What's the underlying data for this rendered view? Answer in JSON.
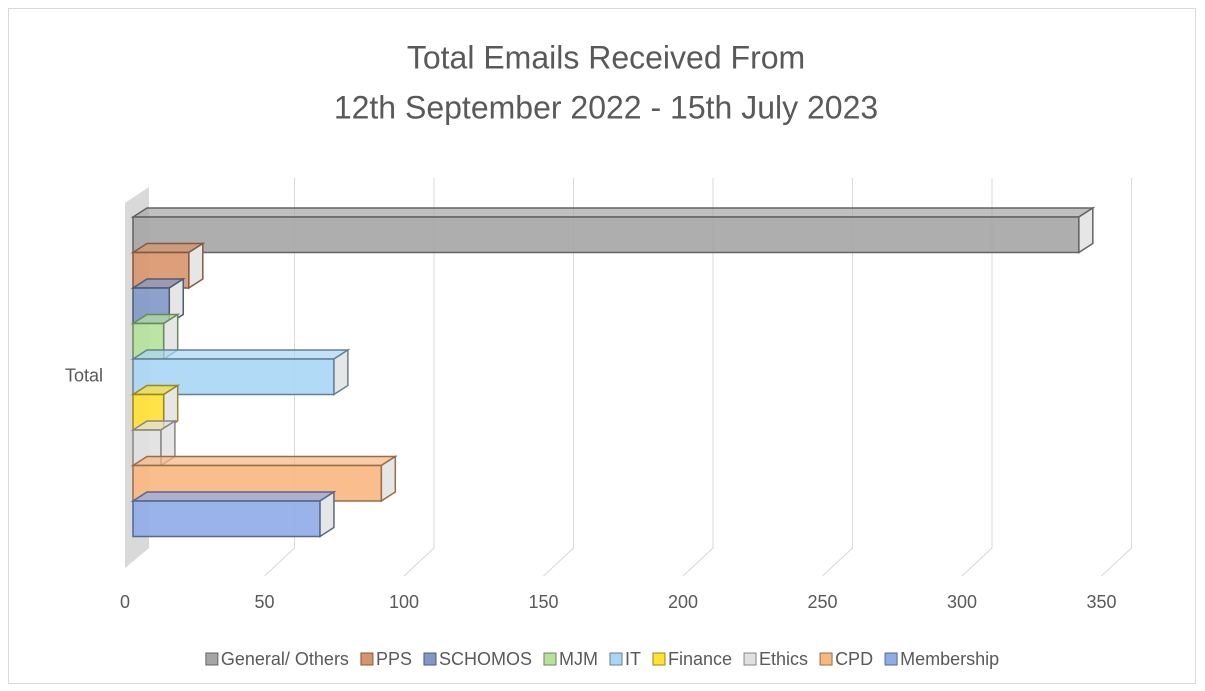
{
  "chart_data": {
    "type": "bar3d",
    "title": "Total Emails Received From",
    "subtitle": "12th September 2022 - 15th July 2023",
    "categories": [
      "Total"
    ],
    "series": [
      {
        "name": "General/ Others",
        "color": "#a5a5a5",
        "values": [
          339
        ]
      },
      {
        "name": "PPS",
        "color": "#d9946b",
        "values": [
          20
        ]
      },
      {
        "name": "SCHOMOS",
        "color": "#7f98c8",
        "values": [
          13
        ]
      },
      {
        "name": "MJM",
        "color": "#b4e19b",
        "values": [
          11
        ]
      },
      {
        "name": "IT",
        "color": "#a9d6f5",
        "values": [
          72
        ]
      },
      {
        "name": "Finance",
        "color": "#ffe033",
        "values": [
          11
        ]
      },
      {
        "name": "Ethics",
        "color": "#e0e0e0",
        "values": [
          10
        ]
      },
      {
        "name": "CPD",
        "color": "#f8b77f",
        "values": [
          89
        ]
      },
      {
        "name": "Membership",
        "color": "#8fabe8",
        "values": [
          67
        ]
      }
    ],
    "xlim": [
      0,
      350
    ],
    "xticks": [
      0,
      50,
      100,
      150,
      200,
      250,
      300,
      350
    ],
    "grid": true,
    "legend": "bottom"
  }
}
